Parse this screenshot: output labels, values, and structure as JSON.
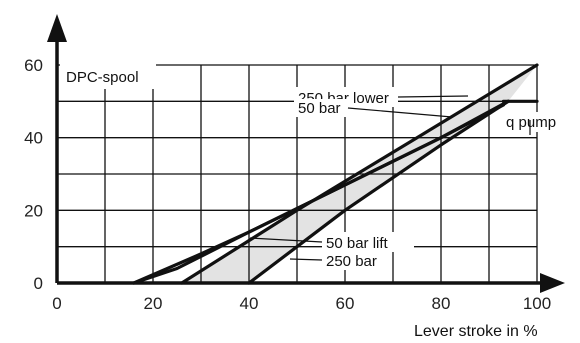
{
  "chart_data": {
    "type": "line",
    "title": "",
    "xlabel": "Lever stroke in %",
    "ylabel": "",
    "xlim": [
      0,
      100
    ],
    "ylim": [
      0,
      60
    ],
    "x_ticks": [
      0,
      20,
      40,
      60,
      80,
      100
    ],
    "y_ticks": [
      0,
      20,
      40,
      60
    ],
    "grid": true,
    "panel_label": "DPC-spool",
    "series": [
      {
        "name": "250 bar lower",
        "points": [
          [
            26,
            0
          ],
          [
            50,
            20
          ],
          [
            75,
            40
          ],
          [
            100,
            60
          ]
        ]
      },
      {
        "name": "50 bar",
        "points": [
          [
            16,
            0
          ],
          [
            25,
            4
          ],
          [
            40,
            14
          ],
          [
            60,
            27
          ],
          [
            80,
            40
          ],
          [
            93,
            49
          ]
        ]
      },
      {
        "name": "q pump",
        "points": [
          [
            93,
            50
          ],
          [
            100,
            50
          ]
        ]
      },
      {
        "name": "50 bar lift",
        "points": [
          [
            16,
            0
          ],
          [
            30,
            8
          ],
          [
            40,
            14
          ],
          [
            60,
            27
          ],
          [
            80,
            40
          ],
          [
            94,
            50
          ]
        ]
      },
      {
        "name": "250 bar",
        "points": [
          [
            40,
            0
          ],
          [
            50,
            10
          ],
          [
            60,
            20
          ],
          [
            80,
            38
          ],
          [
            94,
            50
          ]
        ]
      }
    ],
    "shaded_band": {
      "upper": [
        [
          26,
          0
        ],
        [
          50,
          20
        ],
        [
          75,
          40
        ],
        [
          100,
          60
        ]
      ],
      "lower": [
        [
          40,
          0
        ],
        [
          50,
          10
        ],
        [
          60,
          20
        ],
        [
          80,
          38
        ],
        [
          94,
          50
        ]
      ]
    }
  }
}
